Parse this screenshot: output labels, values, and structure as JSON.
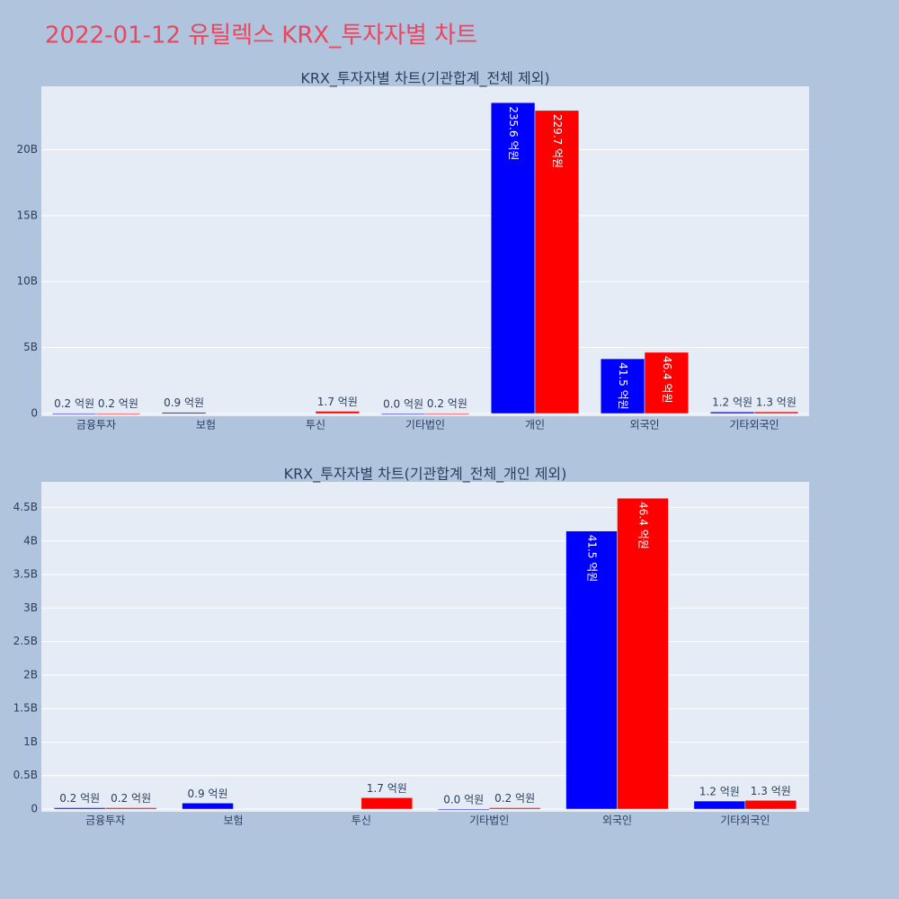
{
  "title": "2022-01-12 유틸렉스 KRX_투자자별 차트",
  "chart_data": [
    {
      "type": "bar",
      "title": "KRX_투자자별 차트(기관합계_전체 제외)",
      "categories": [
        "금융투자",
        "보험",
        "투신",
        "기타법인",
        "개인",
        "외국인",
        "기타외국인"
      ],
      "series": [
        {
          "color": "#0000ff",
          "values": [
            20000000,
            90000000,
            null,
            0,
            23560000000,
            4150000000,
            120000000
          ],
          "value_labels": [
            "0.2 억원",
            "0.9 억원",
            null,
            "0.0 억원",
            "235.6 억원",
            "41.5 억원",
            "1.2 억원"
          ]
        },
        {
          "color": "#ff0000",
          "values": [
            20000000,
            null,
            170000000,
            20000000,
            22970000000,
            4640000000,
            130000000
          ],
          "value_labels": [
            "0.2 억원",
            null,
            "1.7 억원",
            "0.2 억원",
            "229.7 억원",
            "46.4 억원",
            "1.3 억원"
          ]
        }
      ],
      "ylim": [
        0,
        24800000000
      ],
      "yticks": [
        0,
        {
          "value": 5000000000,
          "label": "5B"
        },
        {
          "value": 10000000000,
          "label": "10B"
        },
        {
          "value": 15000000000,
          "label": "15B"
        },
        {
          "value": 20000000000,
          "label": "20B"
        }
      ],
      "grid": true
    },
    {
      "type": "bar",
      "title": "KRX_투자자별 차트(기관합계_전체_개인 제외)",
      "categories": [
        "금융투자",
        "보험",
        "투신",
        "기타법인",
        "외국인",
        "기타외국인"
      ],
      "series": [
        {
          "color": "#0000ff",
          "values": [
            20000000,
            90000000,
            null,
            0,
            4150000000,
            120000000
          ],
          "value_labels": [
            "0.2 억원",
            "0.9 억원",
            null,
            "0.0 억원",
            "41.5 억원",
            "1.2 억원"
          ]
        },
        {
          "color": "#ff0000",
          "values": [
            20000000,
            null,
            170000000,
            20000000,
            4640000000,
            130000000
          ],
          "value_labels": [
            "0.2 억원",
            null,
            "1.7 억원",
            "0.2 억원",
            "46.4 억원",
            "1.3 억원"
          ]
        }
      ],
      "ylim": [
        0,
        4884000000
      ],
      "yticks": [
        0,
        {
          "value": 500000000,
          "label": "0.5B"
        },
        {
          "value": 1000000000,
          "label": "1B"
        },
        {
          "value": 1500000000,
          "label": "1.5B"
        },
        {
          "value": 2000000000,
          "label": "2B"
        },
        {
          "value": 2500000000,
          "label": "2.5B"
        },
        {
          "value": 3000000000,
          "label": "3B"
        },
        {
          "value": 3500000000,
          "label": "3.5B"
        },
        {
          "value": 4000000000,
          "label": "4B"
        },
        {
          "value": 4500000000,
          "label": "4.5B"
        }
      ],
      "grid": true
    }
  ]
}
